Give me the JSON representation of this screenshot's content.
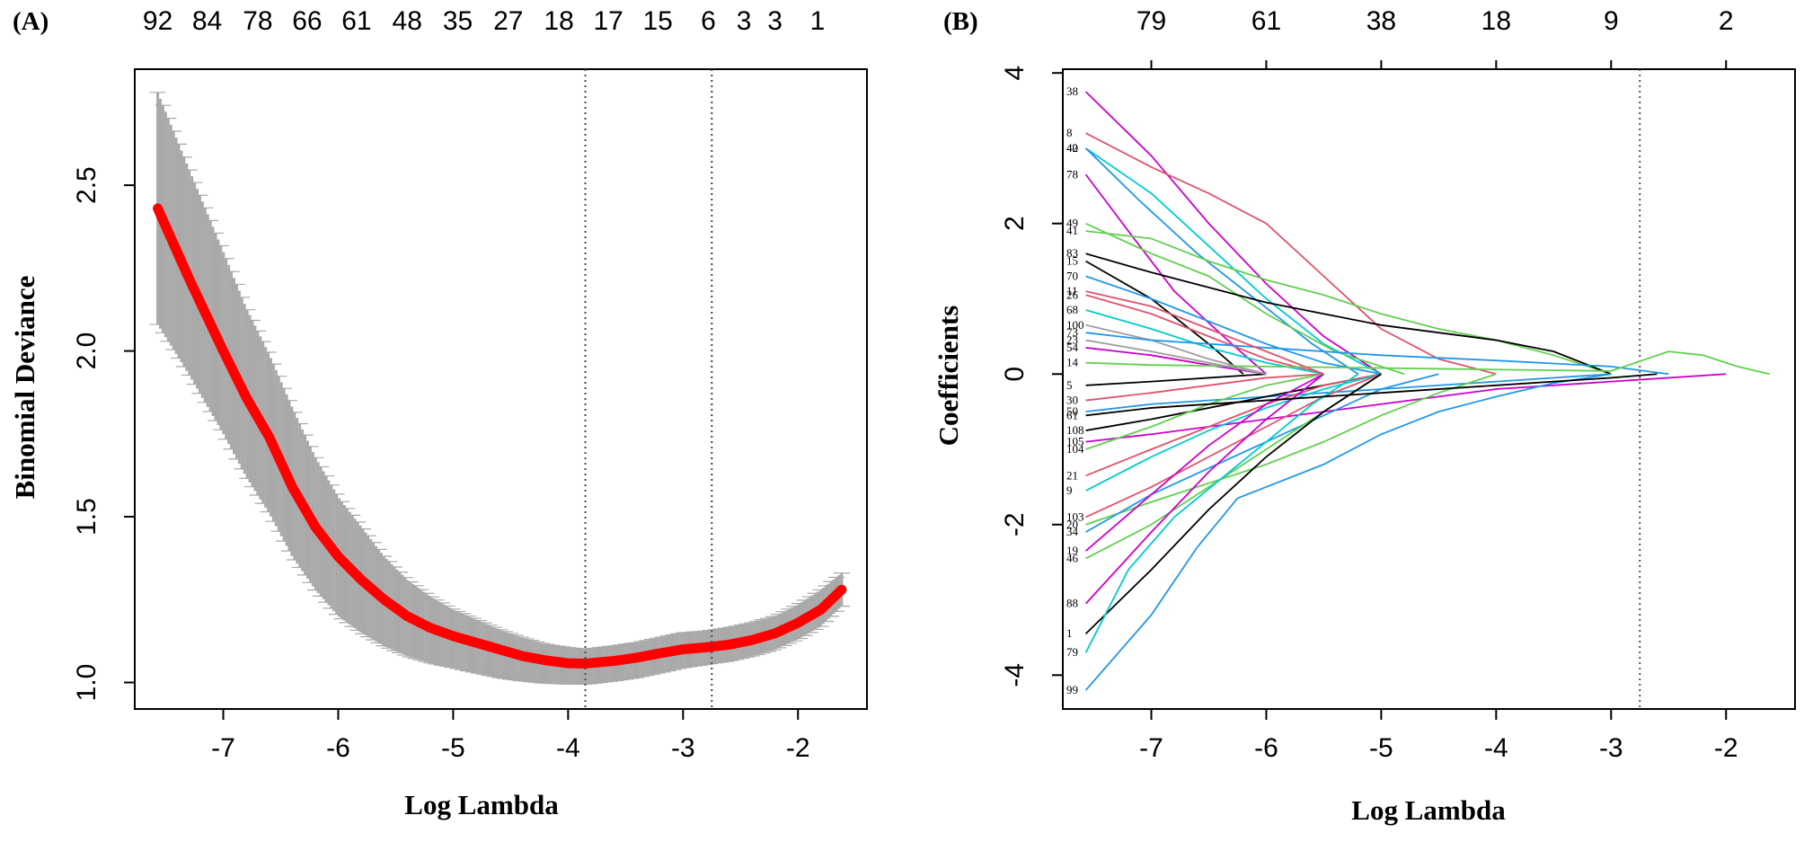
{
  "chart_data": [
    {
      "panel": "(A)",
      "type": "line",
      "title": "",
      "xlabel": "Log Lambda",
      "ylabel": "Binomial Deviance",
      "xlim": [
        -7.77,
        -1.4
      ],
      "ylim": [
        0.92,
        2.85
      ],
      "xticks": [
        -7,
        -6,
        -5,
        -4,
        -3,
        -2
      ],
      "yticks": [
        1.0,
        1.5,
        2.0,
        2.5
      ],
      "top_axis_labels": [
        "92",
        "84",
        "78",
        "66",
        "61",
        "48",
        "35",
        "27",
        "18",
        "17",
        "15",
        "6",
        "3",
        "3",
        "1"
      ],
      "top_axis_positions": [
        -7.57,
        -7.14,
        -6.7,
        -6.27,
        -5.84,
        -5.4,
        -4.96,
        -4.52,
        -4.08,
        -3.65,
        -3.22,
        -2.78,
        -2.47,
        -2.2,
        -1.83
      ],
      "vlines": [
        -3.85,
        -2.75
      ],
      "series": [
        {
          "name": "Binomial Deviance (mean)",
          "color": "#ff0000",
          "x": [
            -7.57,
            -7.3,
            -7.0,
            -6.8,
            -6.6,
            -6.4,
            -6.2,
            -6.0,
            -5.8,
            -5.6,
            -5.4,
            -5.2,
            -5.0,
            -4.8,
            -4.6,
            -4.4,
            -4.2,
            -4.0,
            -3.85,
            -3.6,
            -3.4,
            -3.2,
            -3.0,
            -2.8,
            -2.6,
            -2.4,
            -2.2,
            -2.0,
            -1.8,
            -1.62
          ],
          "y": [
            2.43,
            2.22,
            2.0,
            1.86,
            1.74,
            1.59,
            1.47,
            1.38,
            1.31,
            1.25,
            1.2,
            1.165,
            1.14,
            1.12,
            1.1,
            1.08,
            1.067,
            1.058,
            1.057,
            1.065,
            1.075,
            1.088,
            1.1,
            1.106,
            1.114,
            1.128,
            1.148,
            1.18,
            1.22,
            1.28
          ]
        },
        {
          "name": "Error band",
          "color": "#a9a9a9",
          "x": [
            -7.57,
            -7.3,
            -7.0,
            -6.8,
            -6.6,
            -6.4,
            -6.2,
            -6.0,
            -5.8,
            -5.6,
            -5.4,
            -5.2,
            -5.0,
            -4.8,
            -4.6,
            -4.4,
            -4.2,
            -4.0,
            -3.85,
            -3.6,
            -3.4,
            -3.2,
            -3.0,
            -2.8,
            -2.6,
            -2.4,
            -2.2,
            -2.0,
            -1.8,
            -1.62
          ],
          "upper": [
            2.78,
            2.55,
            2.3,
            2.13,
            1.99,
            1.83,
            1.68,
            1.56,
            1.47,
            1.38,
            1.31,
            1.26,
            1.22,
            1.19,
            1.16,
            1.135,
            1.115,
            1.105,
            1.1,
            1.11,
            1.12,
            1.135,
            1.15,
            1.155,
            1.165,
            1.18,
            1.2,
            1.235,
            1.28,
            1.33
          ],
          "lower": [
            2.08,
            1.93,
            1.75,
            1.62,
            1.51,
            1.38,
            1.28,
            1.2,
            1.15,
            1.11,
            1.08,
            1.06,
            1.045,
            1.03,
            1.015,
            1.005,
            0.998,
            0.995,
            0.995,
            1.005,
            1.015,
            1.03,
            1.045,
            1.055,
            1.065,
            1.08,
            1.1,
            1.13,
            1.17,
            1.23
          ]
        }
      ]
    },
    {
      "panel": "(B)",
      "type": "line",
      "title": "",
      "xlabel": "Log Lambda",
      "ylabel": "Coefficients",
      "xlim": [
        -7.77,
        -1.4
      ],
      "ylim": [
        -4.45,
        4.05
      ],
      "xticks": [
        -7,
        -6,
        -5,
        -4,
        -3,
        -2
      ],
      "yticks": [
        -4,
        -2,
        0,
        2,
        4
      ],
      "top_axis_labels": [
        "79",
        "61",
        "38",
        "18",
        "9",
        "2"
      ],
      "top_axis_positions": [
        -7.0,
        -6.0,
        -5.0,
        -4.0,
        -3.0,
        -2.0
      ],
      "vlines": [
        -2.75
      ],
      "series": [
        {
          "name": "38",
          "color": "#cc00cc",
          "x": [
            -7.57,
            -7.0,
            -6.5,
            -6.0,
            -5.5,
            -5.0
          ],
          "y": [
            3.75,
            2.9,
            2.0,
            1.2,
            0.5,
            0.0
          ]
        },
        {
          "name": "8",
          "color": "#df536b",
          "x": [
            -7.57,
            -7.0,
            -6.5,
            -6.0,
            -5.5,
            -5.0,
            -4.5,
            -4.0
          ],
          "y": [
            3.2,
            2.75,
            2.4,
            2.0,
            1.3,
            0.6,
            0.2,
            0.0
          ]
        },
        {
          "name": "42",
          "color": "#00cccc",
          "x": [
            -7.57,
            -7.0,
            -6.5,
            -6.0,
            -5.5,
            -5.0
          ],
          "y": [
            3.0,
            2.4,
            1.7,
            1.0,
            0.4,
            0.0
          ]
        },
        {
          "name": "40",
          "color": "#2297e6",
          "x": [
            -7.57,
            -7.1,
            -6.6,
            -6.1,
            -5.6,
            -5.2
          ],
          "y": [
            3.0,
            2.3,
            1.6,
            1.0,
            0.4,
            0.0
          ]
        },
        {
          "name": "78",
          "color": "#cc00cc",
          "x": [
            -7.57,
            -7.2,
            -6.8,
            -6.3,
            -6.0
          ],
          "y": [
            2.65,
            1.9,
            1.1,
            0.4,
            0.0
          ]
        },
        {
          "name": "49",
          "color": "#61d04f",
          "x": [
            -7.57,
            -7.0,
            -6.5,
            -6.0,
            -5.4,
            -4.8
          ],
          "y": [
            2.0,
            1.6,
            1.3,
            0.8,
            0.3,
            0.0
          ]
        },
        {
          "name": "41",
          "color": "#61d04f",
          "x": [
            -7.57,
            -7.0,
            -6.5,
            -6.0,
            -5.5,
            -5.0,
            -4.5,
            -4.0,
            -3.5,
            -3.0
          ],
          "y": [
            1.9,
            1.8,
            1.5,
            1.25,
            1.05,
            0.8,
            0.6,
            0.45,
            0.25,
            0.0
          ]
        },
        {
          "name": "83",
          "color": "#000000",
          "x": [
            -7.57,
            -7.0,
            -6.5,
            -6.0,
            -5.5,
            -5.0,
            -4.5,
            -4.0,
            -3.5,
            -3.0
          ],
          "y": [
            1.6,
            1.35,
            1.15,
            0.95,
            0.8,
            0.65,
            0.55,
            0.45,
            0.3,
            0.0
          ]
        },
        {
          "name": "15",
          "color": "#000000",
          "x": [
            -7.57,
            -7.0,
            -6.5,
            -6.2
          ],
          "y": [
            1.5,
            1.0,
            0.4,
            0.0
          ]
        },
        {
          "name": "70",
          "color": "#2297e6",
          "x": [
            -7.57,
            -7.0,
            -6.5,
            -6.0,
            -5.5,
            -5.0
          ],
          "y": [
            1.3,
            1.0,
            0.7,
            0.4,
            0.15,
            0.0
          ]
        },
        {
          "name": "26",
          "color": "#df536b",
          "x": [
            -7.57,
            -7.0,
            -6.5,
            -6.0,
            -5.5
          ],
          "y": [
            1.05,
            0.8,
            0.5,
            0.2,
            0.0
          ]
        },
        {
          "name": "68",
          "color": "#00cccc",
          "x": [
            -7.57,
            -7.0,
            -6.5,
            -6.0,
            -5.5
          ],
          "y": [
            0.85,
            0.6,
            0.35,
            0.15,
            0.0
          ]
        },
        {
          "name": "100",
          "color": "#9e9e9e",
          "x": [
            -7.57,
            -7.0,
            -6.5,
            -6.0
          ],
          "y": [
            0.65,
            0.45,
            0.2,
            0.0
          ]
        },
        {
          "name": "73",
          "color": "#2297e6",
          "x": [
            -7.57,
            -7.0,
            -6.0,
            -5.0,
            -4.0,
            -3.0,
            -2.5
          ],
          "y": [
            0.55,
            0.45,
            0.35,
            0.25,
            0.18,
            0.1,
            0.0
          ]
        },
        {
          "name": "54",
          "color": "#cc00cc",
          "x": [
            -7.57,
            -7.0,
            -6.5,
            -6.0
          ],
          "y": [
            0.35,
            0.25,
            0.12,
            0.0
          ]
        },
        {
          "name": "14",
          "color": "#61d04f",
          "x": [
            -7.57,
            -7.0,
            -6.0,
            -5.0,
            -4.0,
            -3.0,
            -2.5,
            -2.2,
            -1.9,
            -1.62
          ],
          "y": [
            0.15,
            0.12,
            0.1,
            0.08,
            0.06,
            0.04,
            0.3,
            0.25,
            0.1,
            0.0
          ]
        },
        {
          "name": "5",
          "color": "#000000",
          "x": [
            -7.57,
            -7.0,
            -6.5,
            -6.0
          ],
          "y": [
            -0.15,
            -0.1,
            -0.05,
            0.0
          ]
        },
        {
          "name": "30",
          "color": "#df536b",
          "x": [
            -7.57,
            -7.0,
            -6.5,
            -6.0,
            -5.5
          ],
          "y": [
            -0.35,
            -0.25,
            -0.15,
            -0.05,
            0.0
          ]
        },
        {
          "name": "50",
          "color": "#2297e6",
          "x": [
            -7.57,
            -7.0,
            -6.0,
            -5.0,
            -4.0,
            -3.0
          ],
          "y": [
            -0.5,
            -0.4,
            -0.3,
            -0.2,
            -0.1,
            0.0
          ]
        },
        {
          "name": "108",
          "color": "#000000",
          "x": [
            -7.57,
            -7.0,
            -6.5,
            -6.0,
            -5.5,
            -5.0
          ],
          "y": [
            -0.75,
            -0.6,
            -0.45,
            -0.3,
            -0.15,
            0.0
          ]
        },
        {
          "name": "105",
          "color": "#cc00cc",
          "x": [
            -7.57,
            -7.0,
            -6.0,
            -5.0,
            -4.0,
            -3.0,
            -2.5,
            -2.0
          ],
          "y": [
            -0.9,
            -0.8,
            -0.6,
            -0.4,
            -0.2,
            -0.1,
            -0.05,
            0.0
          ]
        },
        {
          "name": "104",
          "color": "#61d04f",
          "x": [
            -7.57,
            -7.0,
            -6.5,
            -6.0,
            -5.5
          ],
          "y": [
            -1.0,
            -0.7,
            -0.4,
            -0.15,
            0.0
          ]
        },
        {
          "name": "21",
          "color": "#df536b",
          "x": [
            -7.57,
            -7.0,
            -6.5,
            -6.0,
            -5.5,
            -5.0
          ],
          "y": [
            -1.35,
            -1.0,
            -0.7,
            -0.4,
            -0.15,
            0.0
          ]
        },
        {
          "name": "9",
          "color": "#00cccc",
          "x": [
            -7.57,
            -7.0,
            -6.5,
            -6.0,
            -5.5,
            -5.0
          ],
          "y": [
            -1.55,
            -1.1,
            -0.75,
            -0.45,
            -0.2,
            0.0
          ]
        },
        {
          "name": "103",
          "color": "#df536b",
          "x": [
            -7.57,
            -7.0,
            -6.5,
            -6.0,
            -5.5,
            -5.0
          ],
          "y": [
            -1.9,
            -1.5,
            -1.1,
            -0.7,
            -0.3,
            0.0
          ]
        },
        {
          "name": "20",
          "color": "#61d04f",
          "x": [
            -7.57,
            -7.0,
            -6.5,
            -6.0,
            -5.5,
            -5.0,
            -4.5,
            -4.0
          ],
          "y": [
            -2.0,
            -1.7,
            -1.45,
            -1.2,
            -0.9,
            -0.55,
            -0.25,
            0.0
          ]
        },
        {
          "name": "34",
          "color": "#2297e6",
          "x": [
            -7.57,
            -7.0,
            -6.5,
            -6.0,
            -5.5,
            -5.0,
            -4.5
          ],
          "y": [
            -2.1,
            -1.6,
            -1.25,
            -0.9,
            -0.55,
            -0.2,
            0.0
          ]
        },
        {
          "name": "19",
          "color": "#cc00cc",
          "x": [
            -7.57,
            -7.0,
            -6.5,
            -6.0,
            -5.5
          ],
          "y": [
            -2.35,
            -1.6,
            -0.95,
            -0.4,
            0.0
          ]
        },
        {
          "name": "46",
          "color": "#61d04f",
          "x": [
            -7.57,
            -7.0,
            -6.5,
            -6.0,
            -5.5,
            -5.0
          ],
          "y": [
            -2.45,
            -2.0,
            -1.5,
            -1.0,
            -0.5,
            0.0
          ]
        },
        {
          "name": "88",
          "color": "#cc00cc",
          "x": [
            -7.57,
            -7.0,
            -6.5,
            -6.0,
            -5.5
          ],
          "y": [
            -3.05,
            -2.1,
            -1.3,
            -0.6,
            0.0
          ]
        },
        {
          "name": "1",
          "color": "#000000",
          "x": [
            -7.57,
            -7.0,
            -6.5,
            -6.0,
            -5.5,
            -5.0
          ],
          "y": [
            -3.45,
            -2.6,
            -1.8,
            -1.1,
            -0.5,
            0.0
          ]
        },
        {
          "name": "79",
          "color": "#00cccc",
          "x": [
            -7.57,
            -7.2,
            -6.8,
            -6.4,
            -6.0,
            -5.6,
            -5.2
          ],
          "y": [
            -3.7,
            -2.6,
            -1.9,
            -1.4,
            -0.9,
            -0.4,
            0.0
          ]
        },
        {
          "name": "99",
          "color": "#2297e6",
          "x": [
            -7.57,
            -7.0,
            -6.6,
            -6.25,
            -5.5,
            -5.0,
            -4.5,
            -4.0,
            -3.5,
            -3.0
          ],
          "y": [
            -4.2,
            -3.2,
            -2.3,
            -1.65,
            -1.2,
            -0.8,
            -0.5,
            -0.3,
            -0.12,
            0.0
          ]
        },
        {
          "name": "11",
          "color": "#df536b",
          "x": [
            -7.57,
            -7.0,
            -6.5,
            -6.0,
            -5.5
          ],
          "y": [
            1.1,
            0.9,
            0.6,
            0.3,
            0.0
          ]
        },
        {
          "name": "23",
          "color": "#9e9e9e",
          "x": [
            -7.57,
            -7.0,
            -6.5,
            -6.0
          ],
          "y": [
            0.45,
            0.3,
            0.15,
            0.0
          ]
        },
        {
          "name": "61",
          "color": "#000000",
          "x": [
            -7.57,
            -7.0,
            -6.0,
            -5.0,
            -4.0,
            -3.0,
            -2.6
          ],
          "y": [
            -0.55,
            -0.45,
            -0.35,
            -0.25,
            -0.15,
            -0.05,
            0.0
          ]
        }
      ]
    }
  ]
}
